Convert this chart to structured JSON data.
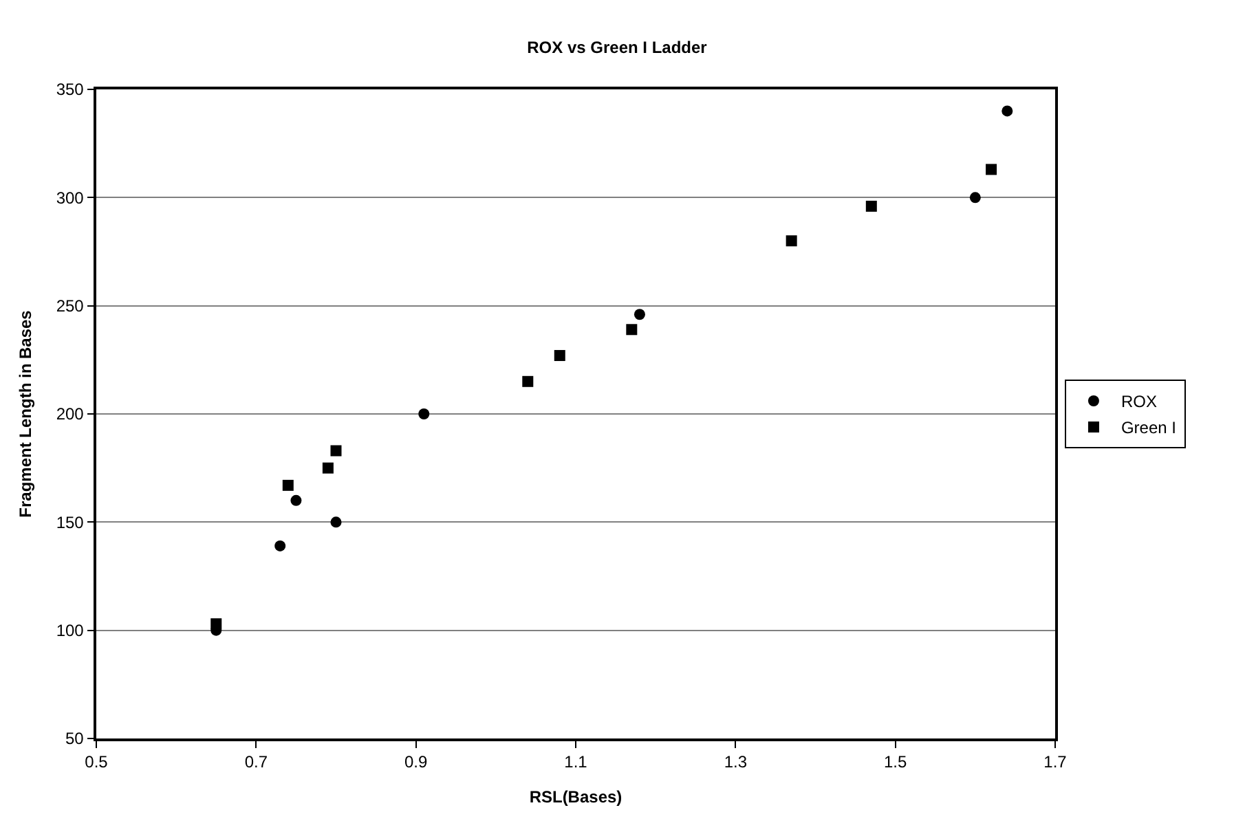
{
  "chart_data": {
    "type": "scatter",
    "title": "ROX vs Green I Ladder",
    "xlabel": "RSL(Bases)",
    "ylabel": "Fragment Length in Bases",
    "xlim": [
      0.5,
      1.7
    ],
    "xticks": [
      0.5,
      0.7,
      0.9,
      1.1,
      1.3,
      1.5,
      1.7
    ],
    "ylim": [
      50,
      350
    ],
    "yticks": [
      50,
      100,
      150,
      200,
      250,
      300,
      350
    ],
    "grid": "y",
    "legend": "right",
    "series": [
      {
        "name": "ROX",
        "color": "#000000",
        "marker": "circle",
        "x": [
          0.65,
          0.73,
          0.75,
          0.8,
          0.91,
          1.18,
          1.6,
          1.64
        ],
        "values": [
          100,
          139,
          160,
          150,
          200,
          246,
          300,
          340
        ]
      },
      {
        "name": "Green I",
        "color": "#000000",
        "marker": "square",
        "x": [
          0.65,
          0.74,
          0.79,
          0.8,
          1.04,
          1.08,
          1.17,
          1.37,
          1.47,
          1.62
        ],
        "values": [
          103,
          167,
          175,
          183,
          215,
          227,
          239,
          280,
          296,
          313
        ]
      }
    ]
  }
}
